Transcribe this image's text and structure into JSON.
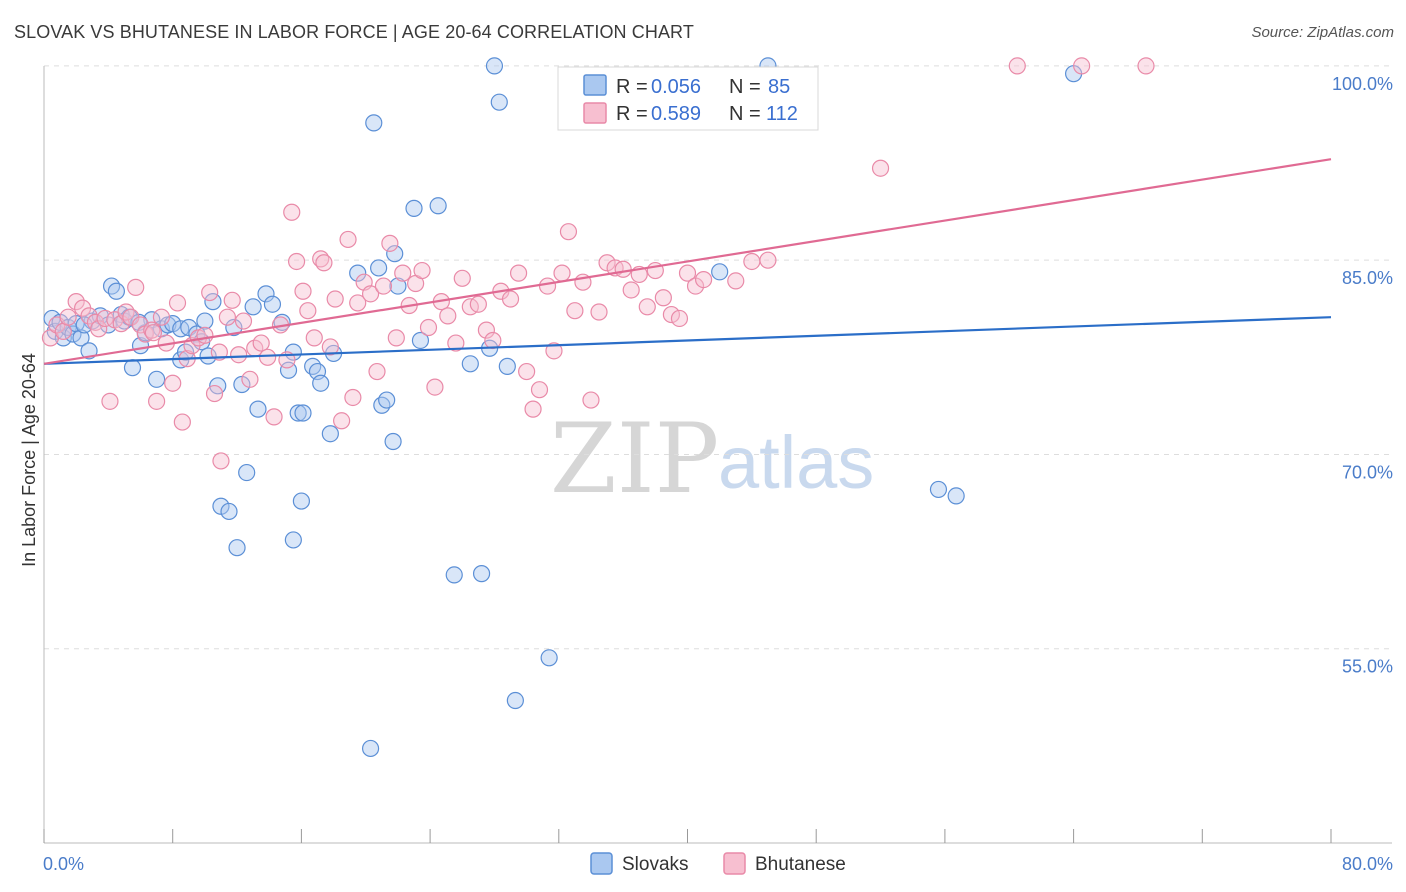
{
  "header": {
    "title": "SLOVAK VS BHUTANESE IN LABOR FORCE | AGE 20-64 CORRELATION CHART",
    "source": "Source: ZipAtlas.com"
  },
  "watermark": {
    "zip": "ZIP",
    "atlas": "atlas"
  },
  "colors": {
    "slovak_fill": "#aac8f0",
    "slovak_stroke": "#5b8fd6",
    "slovak_line": "#2b6ec8",
    "bhutanese_fill": "#f7bfd0",
    "bhutanese_stroke": "#e98aa8",
    "bhutanese_line": "#e06a93",
    "grid": "#dddddd",
    "tick_label": "#4a7cc9"
  },
  "legend": {
    "rows": [
      {
        "r_label": "R = ",
        "r_value": "0.056",
        "n_label": "N = ",
        "n_value": "85"
      },
      {
        "r_label": "R = ",
        "r_value": "0.589",
        "n_label": "N = ",
        "n_value": "112"
      }
    ],
    "bottom": [
      "Slovaks",
      "Bhutanese"
    ]
  },
  "chart_data": {
    "type": "scatter",
    "title": "SLOVAK VS BHUTANESE IN LABOR FORCE | AGE 20-64 CORRELATION CHART",
    "xlabel": "",
    "ylabel": "In Labor Force | Age 20-64",
    "xlim": [
      0,
      80
    ],
    "ylim": [
      40,
      102
    ],
    "y_ticks": [
      {
        "value": 55,
        "label": "55.0%"
      },
      {
        "value": 70,
        "label": "70.0%"
      },
      {
        "value": 85,
        "label": "85.0%"
      },
      {
        "value": 100,
        "label": "100.0%"
      }
    ],
    "x_tick_labels": [
      {
        "value": 0,
        "label": "0.0%"
      },
      {
        "value": 80,
        "label": "80.0%"
      }
    ],
    "x_minor_ticks": [
      0,
      8,
      16,
      24,
      32,
      40,
      48,
      56,
      64,
      72,
      80
    ],
    "grid": true,
    "legend_position": "top-center",
    "series": [
      {
        "name": "Slovaks",
        "trend": {
          "x0": 0,
          "y0": 77.0,
          "x1": 80,
          "y1": 80.6
        },
        "points": [
          [
            0.5,
            80.5
          ],
          [
            0.7,
            79.5
          ],
          [
            1.0,
            80.2
          ],
          [
            1.2,
            79.0
          ],
          [
            1.5,
            79.8
          ],
          [
            1.8,
            79.3
          ],
          [
            2.0,
            80.1
          ],
          [
            2.3,
            79.0
          ],
          [
            2.8,
            78.0
          ],
          [
            3.0,
            80.3
          ],
          [
            3.5,
            80.7
          ],
          [
            4.0,
            80.0
          ],
          [
            4.2,
            83.0
          ],
          [
            4.5,
            82.6
          ],
          [
            4.8,
            80.8
          ],
          [
            5.0,
            80.3
          ],
          [
            5.3,
            80.6
          ],
          [
            5.5,
            76.7
          ],
          [
            6.0,
            78.4
          ],
          [
            6.3,
            79.4
          ],
          [
            6.7,
            80.4
          ],
          [
            7.0,
            75.8
          ],
          [
            7.3,
            79.7
          ],
          [
            7.7,
            80.0
          ],
          [
            8.0,
            80.1
          ],
          [
            8.5,
            79.7
          ],
          [
            8.5,
            77.3
          ],
          [
            9.0,
            79.8
          ],
          [
            9.5,
            79.3
          ],
          [
            9.8,
            78.7
          ],
          [
            10.0,
            80.3
          ],
          [
            10.2,
            77.6
          ],
          [
            10.5,
            81.8
          ],
          [
            10.8,
            75.3
          ],
          [
            11.0,
            66.0
          ],
          [
            11.5,
            65.6
          ],
          [
            11.8,
            79.8
          ],
          [
            12.0,
            62.8
          ],
          [
            12.3,
            75.4
          ],
          [
            12.6,
            68.6
          ],
          [
            13.0,
            81.4
          ],
          [
            13.3,
            73.5
          ],
          [
            13.8,
            82.4
          ],
          [
            14.2,
            81.6
          ],
          [
            14.8,
            80.2
          ],
          [
            15.2,
            76.5
          ],
          [
            15.5,
            63.4
          ],
          [
            15.5,
            77.9
          ],
          [
            15.8,
            73.2
          ],
          [
            16.0,
            66.4
          ],
          [
            16.1,
            73.2
          ],
          [
            16.7,
            76.8
          ],
          [
            17.0,
            76.4
          ],
          [
            17.2,
            75.5
          ],
          [
            17.8,
            71.6
          ],
          [
            18.0,
            77.8
          ],
          [
            19.5,
            84.0
          ],
          [
            20.3,
            47.3
          ],
          [
            20.5,
            95.6
          ],
          [
            20.8,
            84.4
          ],
          [
            21.0,
            73.8
          ],
          [
            21.3,
            74.2
          ],
          [
            21.8,
            85.5
          ],
          [
            21.7,
            71.0
          ],
          [
            22.0,
            83.0
          ],
          [
            23.0,
            89.0
          ],
          [
            23.4,
            78.8
          ],
          [
            24.5,
            89.2
          ],
          [
            25.5,
            60.7
          ],
          [
            26.5,
            77.0
          ],
          [
            27.2,
            60.8
          ],
          [
            27.7,
            78.2
          ],
          [
            28.0,
            100.0
          ],
          [
            28.3,
            97.2
          ],
          [
            28.8,
            76.8
          ],
          [
            29.3,
            51.0
          ],
          [
            31.4,
            54.3
          ],
          [
            45.0,
            100.0
          ],
          [
            55.6,
            67.3
          ],
          [
            56.7,
            66.8
          ],
          [
            64.0,
            99.4
          ],
          [
            42.0,
            84.1
          ],
          [
            8.8,
            77.9
          ],
          [
            5.9,
            80.2
          ],
          [
            2.5,
            80.0
          ]
        ]
      },
      {
        "name": "Bhutanese",
        "trend": {
          "x0": 0,
          "y0": 77.0,
          "x1": 80,
          "y1": 92.8
        },
        "points": [
          [
            0.4,
            79.0
          ],
          [
            0.8,
            80.0
          ],
          [
            1.2,
            79.5
          ],
          [
            1.5,
            80.6
          ],
          [
            2.0,
            81.8
          ],
          [
            2.4,
            81.3
          ],
          [
            2.8,
            80.7
          ],
          [
            3.2,
            80.2
          ],
          [
            3.4,
            79.7
          ],
          [
            3.8,
            80.5
          ],
          [
            4.1,
            74.1
          ],
          [
            4.4,
            80.4
          ],
          [
            4.8,
            80.1
          ],
          [
            5.1,
            81.0
          ],
          [
            5.4,
            80.6
          ],
          [
            5.7,
            82.9
          ],
          [
            6.0,
            80.0
          ],
          [
            6.3,
            79.3
          ],
          [
            6.7,
            79.6
          ],
          [
            7.0,
            74.1
          ],
          [
            7.3,
            80.6
          ],
          [
            7.6,
            78.6
          ],
          [
            8.0,
            75.5
          ],
          [
            8.3,
            81.7
          ],
          [
            8.6,
            72.5
          ],
          [
            8.9,
            77.4
          ],
          [
            9.2,
            78.4
          ],
          [
            9.6,
            79.0
          ],
          [
            10.0,
            79.2
          ],
          [
            10.3,
            82.5
          ],
          [
            10.6,
            74.7
          ],
          [
            10.9,
            77.9
          ],
          [
            11.0,
            69.5
          ],
          [
            11.4,
            80.6
          ],
          [
            11.7,
            81.9
          ],
          [
            12.1,
            77.7
          ],
          [
            12.4,
            80.3
          ],
          [
            12.8,
            75.8
          ],
          [
            13.1,
            78.2
          ],
          [
            13.5,
            78.6
          ],
          [
            13.9,
            77.5
          ],
          [
            14.3,
            72.9
          ],
          [
            14.7,
            80.0
          ],
          [
            15.1,
            77.3
          ],
          [
            15.4,
            88.7
          ],
          [
            15.7,
            84.9
          ],
          [
            16.1,
            82.6
          ],
          [
            16.4,
            81.1
          ],
          [
            16.8,
            79.0
          ],
          [
            17.2,
            85.1
          ],
          [
            17.4,
            84.8
          ],
          [
            17.8,
            78.3
          ],
          [
            18.1,
            82.0
          ],
          [
            18.5,
            72.6
          ],
          [
            18.9,
            86.6
          ],
          [
            19.2,
            74.4
          ],
          [
            19.5,
            81.7
          ],
          [
            19.9,
            83.3
          ],
          [
            20.3,
            82.4
          ],
          [
            20.7,
            76.4
          ],
          [
            21.1,
            83.0
          ],
          [
            21.5,
            86.3
          ],
          [
            21.9,
            79.0
          ],
          [
            22.3,
            84.0
          ],
          [
            22.7,
            81.5
          ],
          [
            23.1,
            83.2
          ],
          [
            23.5,
            84.2
          ],
          [
            23.9,
            79.8
          ],
          [
            24.3,
            75.2
          ],
          [
            24.7,
            81.8
          ],
          [
            25.1,
            80.7
          ],
          [
            25.6,
            78.6
          ],
          [
            26.0,
            83.6
          ],
          [
            26.5,
            81.4
          ],
          [
            27.0,
            81.6
          ],
          [
            27.5,
            79.6
          ],
          [
            27.9,
            78.8
          ],
          [
            28.4,
            82.6
          ],
          [
            29.0,
            82.0
          ],
          [
            29.5,
            84.0
          ],
          [
            30.0,
            76.4
          ],
          [
            30.4,
            73.5
          ],
          [
            30.8,
            75.0
          ],
          [
            31.3,
            83.0
          ],
          [
            31.7,
            78.0
          ],
          [
            32.2,
            84.0
          ],
          [
            32.6,
            87.2
          ],
          [
            33.0,
            81.1
          ],
          [
            33.5,
            83.3
          ],
          [
            34.0,
            74.2
          ],
          [
            34.5,
            81.0
          ],
          [
            35.0,
            84.8
          ],
          [
            35.5,
            84.4
          ],
          [
            36.0,
            84.3
          ],
          [
            36.5,
            82.7
          ],
          [
            37.0,
            83.9
          ],
          [
            37.5,
            81.4
          ],
          [
            38.0,
            84.2
          ],
          [
            38.5,
            82.1
          ],
          [
            39.0,
            80.8
          ],
          [
            39.5,
            80.5
          ],
          [
            40.0,
            84.0
          ],
          [
            40.5,
            83.0
          ],
          [
            41.0,
            83.5
          ],
          [
            43.0,
            83.4
          ],
          [
            44.0,
            84.9
          ],
          [
            45.0,
            85.0
          ],
          [
            52.0,
            92.1
          ],
          [
            60.5,
            100.0
          ],
          [
            64.5,
            100.0
          ],
          [
            68.5,
            100.0
          ],
          [
            6.8,
            79.4
          ]
        ]
      }
    ]
  }
}
